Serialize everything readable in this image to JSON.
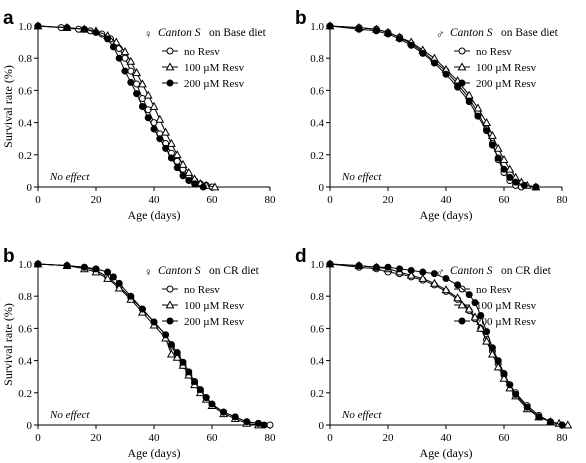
{
  "chart_data": [
    {
      "type": "line",
      "panel_label": "a",
      "title": {
        "symbol": "♀",
        "strain": "Canton S",
        "diet": "on Base diet"
      },
      "ylabel": "Survival rate (%)",
      "xlabel": "Age (days)",
      "xlim": [
        0,
        80
      ],
      "ylim": [
        0,
        1.0
      ],
      "x_ticks": [
        0,
        20,
        40,
        60,
        80
      ],
      "y_ticks": [
        0,
        0.2,
        0.4,
        0.6,
        0.8,
        1.0
      ],
      "y_tick_labels": [
        "0",
        "0.2",
        "0.4",
        "0.6",
        "0.8",
        "1.0"
      ],
      "annotation": "No effect",
      "legend_position": "top-right",
      "series": [
        {
          "name": "no Resv",
          "marker": "open-circle",
          "x": [
            0,
            8,
            14,
            18,
            22,
            25,
            28,
            30,
            32,
            34,
            36,
            38,
            40,
            42,
            44,
            46,
            48,
            50,
            52,
            54,
            56,
            58,
            60
          ],
          "y": [
            1.0,
            0.99,
            0.98,
            0.97,
            0.95,
            0.92,
            0.86,
            0.8,
            0.72,
            0.64,
            0.55,
            0.48,
            0.4,
            0.33,
            0.27,
            0.21,
            0.16,
            0.11,
            0.07,
            0.04,
            0.02,
            0.01,
            0.0
          ]
        },
        {
          "name": "100 µM Resv",
          "marker": "open-triangle",
          "x": [
            0,
            10,
            16,
            20,
            24,
            27,
            30,
            32,
            34,
            36,
            38,
            40,
            42,
            44,
            46,
            48,
            50,
            52,
            54,
            56,
            58,
            61
          ],
          "y": [
            1.0,
            0.99,
            0.98,
            0.97,
            0.94,
            0.9,
            0.84,
            0.78,
            0.71,
            0.64,
            0.57,
            0.5,
            0.42,
            0.34,
            0.27,
            0.2,
            0.14,
            0.09,
            0.05,
            0.02,
            0.01,
            0.0
          ]
        },
        {
          "name": "200 µM Resv",
          "marker": "filled-circle",
          "x": [
            0,
            10,
            16,
            20,
            24,
            26,
            28,
            30,
            32,
            34,
            36,
            38,
            40,
            42,
            44,
            46,
            48,
            50,
            52,
            54,
            57
          ],
          "y": [
            1.0,
            0.99,
            0.98,
            0.96,
            0.92,
            0.87,
            0.8,
            0.72,
            0.65,
            0.58,
            0.5,
            0.43,
            0.36,
            0.3,
            0.24,
            0.18,
            0.12,
            0.07,
            0.04,
            0.02,
            0.0
          ]
        }
      ]
    },
    {
      "type": "line",
      "panel_label": "b",
      "title": {
        "symbol": "♂",
        "strain": "Canton S",
        "diet": "on Base diet"
      },
      "ylabel": "",
      "xlabel": "Age (days)",
      "xlim": [
        0,
        80
      ],
      "ylim": [
        0,
        1.0
      ],
      "x_ticks": [
        0,
        20,
        40,
        60,
        80
      ],
      "y_ticks": [
        0,
        0.2,
        0.4,
        0.6,
        0.8,
        1.0
      ],
      "y_tick_labels": [
        "0",
        "0.2",
        "0.4",
        "0.6",
        "0.8",
        "1.0"
      ],
      "annotation": "No effect",
      "legend_position": "top-right",
      "series": [
        {
          "name": "no Resv",
          "marker": "open-circle",
          "x": [
            0,
            10,
            16,
            20,
            24,
            28,
            32,
            36,
            40,
            44,
            48,
            51,
            54,
            56,
            58,
            60,
            62,
            64,
            66
          ],
          "y": [
            1.0,
            0.99,
            0.98,
            0.96,
            0.93,
            0.89,
            0.84,
            0.78,
            0.72,
            0.64,
            0.55,
            0.46,
            0.36,
            0.27,
            0.17,
            0.09,
            0.04,
            0.01,
            0.0
          ]
        },
        {
          "name": "100 µM Resv",
          "marker": "open-triangle",
          "x": [
            0,
            10,
            16,
            20,
            24,
            28,
            32,
            36,
            40,
            44,
            48,
            51,
            54,
            56,
            58,
            60,
            62,
            64,
            66,
            68,
            71
          ],
          "y": [
            1.0,
            0.99,
            0.98,
            0.96,
            0.93,
            0.9,
            0.85,
            0.8,
            0.73,
            0.66,
            0.57,
            0.49,
            0.4,
            0.32,
            0.24,
            0.17,
            0.11,
            0.06,
            0.03,
            0.01,
            0.0
          ]
        },
        {
          "name": "200 µM Resv",
          "marker": "filled-circle",
          "x": [
            0,
            10,
            16,
            20,
            24,
            28,
            32,
            36,
            40,
            44,
            48,
            51,
            54,
            56,
            58,
            60,
            62,
            64,
            67,
            71
          ],
          "y": [
            1.0,
            0.98,
            0.97,
            0.95,
            0.92,
            0.88,
            0.83,
            0.77,
            0.7,
            0.62,
            0.53,
            0.44,
            0.35,
            0.26,
            0.18,
            0.11,
            0.06,
            0.03,
            0.01,
            0.0
          ]
        }
      ]
    },
    {
      "type": "line",
      "panel_label": "b",
      "title": {
        "symbol": "♀",
        "strain": "Canton S",
        "diet": "on CR diet"
      },
      "ylabel": "Survival rate (%)",
      "xlabel": "Age (days)",
      "xlim": [
        0,
        80
      ],
      "ylim": [
        0,
        1.0
      ],
      "x_ticks": [
        0,
        20,
        40,
        60,
        80
      ],
      "y_ticks": [
        0,
        0.2,
        0.4,
        0.6,
        0.8,
        1.0
      ],
      "y_tick_labels": [
        "0",
        "0.2",
        "0.4",
        "0.6",
        "0.8",
        "1.0"
      ],
      "annotation": "No effect",
      "legend_position": "top-right",
      "series": [
        {
          "name": "no Resv",
          "marker": "open-circle",
          "x": [
            0,
            10,
            16,
            20,
            24,
            28,
            32,
            36,
            40,
            44,
            46,
            48,
            50,
            52,
            54,
            56,
            58,
            60,
            64,
            68,
            72,
            76,
            80
          ],
          "y": [
            1.0,
            0.99,
            0.98,
            0.96,
            0.92,
            0.86,
            0.79,
            0.72,
            0.64,
            0.56,
            0.49,
            0.43,
            0.37,
            0.31,
            0.26,
            0.21,
            0.17,
            0.13,
            0.08,
            0.05,
            0.02,
            0.01,
            0.0
          ]
        },
        {
          "name": "100 µM Resv",
          "marker": "open-triangle",
          "x": [
            0,
            10,
            16,
            20,
            24,
            28,
            32,
            36,
            40,
            44,
            46,
            48,
            50,
            52,
            54,
            56,
            58,
            60,
            64,
            68,
            72,
            76
          ],
          "y": [
            1.0,
            0.99,
            0.97,
            0.95,
            0.91,
            0.85,
            0.78,
            0.7,
            0.62,
            0.54,
            0.44,
            0.42,
            0.37,
            0.31,
            0.25,
            0.2,
            0.16,
            0.12,
            0.07,
            0.04,
            0.01,
            0.0
          ]
        },
        {
          "name": "200 µM Resv",
          "marker": "filled-circle",
          "x": [
            0,
            10,
            16,
            20,
            24,
            26,
            28,
            32,
            36,
            40,
            44,
            46,
            48,
            50,
            52,
            54,
            56,
            58,
            60,
            64,
            68,
            72,
            76,
            78
          ],
          "y": [
            1.0,
            0.99,
            0.98,
            0.97,
            0.95,
            0.92,
            0.88,
            0.8,
            0.72,
            0.64,
            0.56,
            0.5,
            0.45,
            0.39,
            0.33,
            0.27,
            0.22,
            0.17,
            0.13,
            0.08,
            0.05,
            0.02,
            0.01,
            0.0
          ]
        }
      ]
    },
    {
      "type": "line",
      "panel_label": "d",
      "title": {
        "symbol": "♂",
        "strain": "Canton S",
        "diet": "on CR diet"
      },
      "ylabel": "",
      "xlabel": "Age (days)",
      "xlim": [
        0,
        80
      ],
      "ylim": [
        0,
        1.0
      ],
      "x_ticks": [
        0,
        20,
        40,
        60,
        80
      ],
      "y_ticks": [
        0,
        0.2,
        0.4,
        0.6,
        0.8,
        1.0
      ],
      "y_tick_labels": [
        "0",
        "0.2",
        "0.4",
        "0.6",
        "0.8",
        "1.0"
      ],
      "annotation": "No effect",
      "legend_position": "top-right",
      "series": [
        {
          "name": "no Resv",
          "marker": "open-circle",
          "x": [
            0,
            10,
            16,
            20,
            24,
            28,
            32,
            36,
            40,
            44,
            48,
            50,
            52,
            54,
            56,
            58,
            60,
            62,
            64,
            68,
            72,
            76,
            80
          ],
          "y": [
            1.0,
            0.98,
            0.97,
            0.95,
            0.94,
            0.92,
            0.9,
            0.87,
            0.83,
            0.78,
            0.71,
            0.66,
            0.6,
            0.53,
            0.46,
            0.38,
            0.31,
            0.25,
            0.2,
            0.12,
            0.06,
            0.02,
            0.0
          ]
        },
        {
          "name": "100 µM Resv",
          "marker": "open-triangle",
          "x": [
            0,
            10,
            16,
            20,
            24,
            28,
            32,
            36,
            40,
            44,
            48,
            50,
            52,
            54,
            56,
            58,
            60,
            62,
            64,
            68,
            72,
            76,
            79,
            82
          ],
          "y": [
            1.0,
            0.99,
            0.98,
            0.97,
            0.95,
            0.93,
            0.91,
            0.88,
            0.84,
            0.79,
            0.72,
            0.67,
            0.6,
            0.52,
            0.44,
            0.36,
            0.29,
            0.23,
            0.18,
            0.1,
            0.05,
            0.02,
            0.01,
            0.0
          ]
        },
        {
          "name": "200 µM Resv",
          "marker": "filled-circle",
          "x": [
            0,
            10,
            16,
            20,
            24,
            28,
            32,
            36,
            40,
            44,
            48,
            50,
            52,
            54,
            56,
            58,
            60,
            62,
            64,
            68,
            72,
            76,
            80
          ],
          "y": [
            1.0,
            0.99,
            0.98,
            0.98,
            0.97,
            0.96,
            0.95,
            0.94,
            0.91,
            0.87,
            0.81,
            0.76,
            0.68,
            0.58,
            0.48,
            0.4,
            0.32,
            0.25,
            0.19,
            0.11,
            0.05,
            0.02,
            0.0
          ]
        }
      ]
    }
  ]
}
